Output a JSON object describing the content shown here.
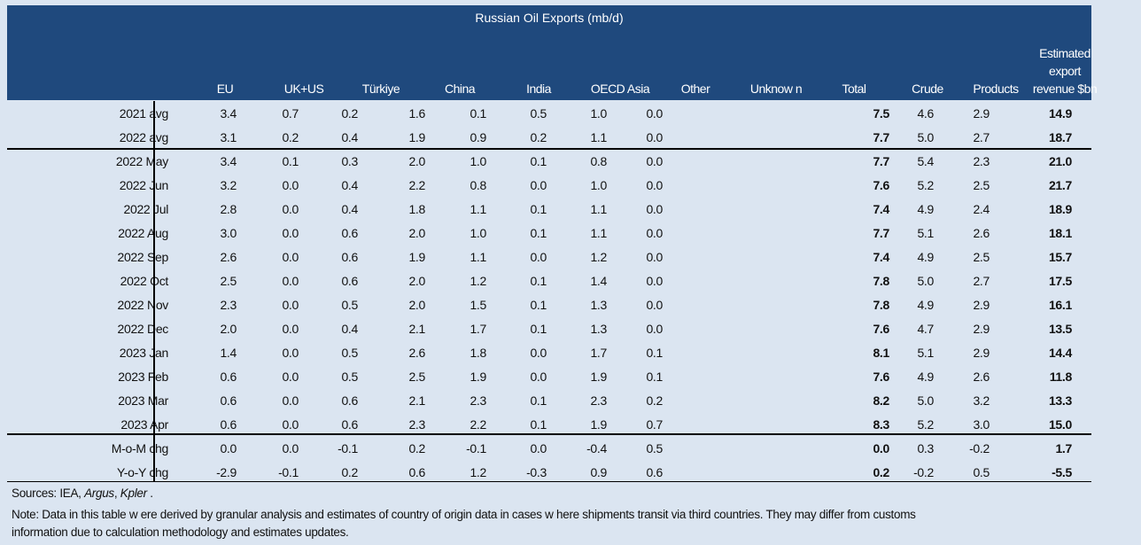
{
  "title": "Russian Oil Exports (mb/d)",
  "columns": [
    "EU",
    "UK+US",
    "Türkiye",
    "China",
    "India",
    "OECD Asia",
    "Other",
    "Unknow n",
    "Total",
    "Crude",
    "Products",
    "Estimated export revenue $bn"
  ],
  "rows": [
    {
      "label": "2021 avg",
      "values": [
        "3.4",
        "0.7",
        "0.2",
        "1.6",
        "0.1",
        "0.5",
        "1.0",
        "0.0",
        "7.5",
        "4.6",
        "2.9",
        "14.9"
      ]
    },
    {
      "label": "2022 avg",
      "values": [
        "3.1",
        "0.2",
        "0.4",
        "1.9",
        "0.9",
        "0.2",
        "1.1",
        "0.0",
        "7.7",
        "5.0",
        "2.7",
        "18.7"
      ]
    },
    {
      "label": "2022 May",
      "values": [
        "3.4",
        "0.1",
        "0.3",
        "2.0",
        "1.0",
        "0.1",
        "0.8",
        "0.0",
        "7.7",
        "5.4",
        "2.3",
        "21.0"
      ]
    },
    {
      "label": "2022 Jun",
      "values": [
        "3.2",
        "0.0",
        "0.4",
        "2.2",
        "0.8",
        "0.0",
        "1.0",
        "0.0",
        "7.6",
        "5.2",
        "2.5",
        "21.7"
      ]
    },
    {
      "label": "2022 Jul",
      "values": [
        "2.8",
        "0.0",
        "0.4",
        "1.8",
        "1.1",
        "0.1",
        "1.1",
        "0.0",
        "7.4",
        "4.9",
        "2.4",
        "18.9"
      ]
    },
    {
      "label": "2022 Aug",
      "values": [
        "3.0",
        "0.0",
        "0.6",
        "2.0",
        "1.0",
        "0.1",
        "1.1",
        "0.0",
        "7.7",
        "5.1",
        "2.6",
        "18.1"
      ]
    },
    {
      "label": "2022 Sep",
      "values": [
        "2.6",
        "0.0",
        "0.6",
        "1.9",
        "1.1",
        "0.0",
        "1.2",
        "0.0",
        "7.4",
        "4.9",
        "2.5",
        "15.7"
      ]
    },
    {
      "label": "2022 Oct",
      "values": [
        "2.5",
        "0.0",
        "0.6",
        "2.0",
        "1.2",
        "0.1",
        "1.4",
        "0.0",
        "7.8",
        "5.0",
        "2.7",
        "17.5"
      ]
    },
    {
      "label": "2022 Nov",
      "values": [
        "2.3",
        "0.0",
        "0.5",
        "2.0",
        "1.5",
        "0.1",
        "1.3",
        "0.0",
        "7.8",
        "4.9",
        "2.9",
        "16.1"
      ]
    },
    {
      "label": "2022 Dec",
      "values": [
        "2.0",
        "0.0",
        "0.4",
        "2.1",
        "1.7",
        "0.1",
        "1.3",
        "0.0",
        "7.6",
        "4.7",
        "2.9",
        "13.5"
      ]
    },
    {
      "label": "2023 Jan",
      "values": [
        "1.4",
        "0.0",
        "0.5",
        "2.6",
        "1.8",
        "0.0",
        "1.7",
        "0.1",
        "8.1",
        "5.1",
        "2.9",
        "14.4"
      ]
    },
    {
      "label": "2023 Feb",
      "values": [
        "0.6",
        "0.0",
        "0.5",
        "2.5",
        "1.9",
        "0.0",
        "1.9",
        "0.1",
        "7.6",
        "4.9",
        "2.6",
        "11.8"
      ]
    },
    {
      "label": "2023 Mar",
      "values": [
        "0.6",
        "0.0",
        "0.6",
        "2.1",
        "2.3",
        "0.1",
        "2.3",
        "0.2",
        "8.2",
        "5.0",
        "3.2",
        "13.3"
      ]
    },
    {
      "label": "2023 Apr",
      "values": [
        "0.6",
        "0.0",
        "0.6",
        "2.3",
        "2.2",
        "0.1",
        "1.9",
        "0.7",
        "8.3",
        "5.2",
        "3.0",
        "15.0"
      ]
    },
    {
      "label": "M-o-M chg",
      "values": [
        "0.0",
        "0.0",
        "-0.1",
        "0.2",
        "-0.1",
        "0.0",
        "-0.4",
        "0.5",
        "0.0",
        "0.3",
        "-0.2",
        "1.7"
      ]
    },
    {
      "label": "Y-o-Y chg",
      "values": [
        "-2.9",
        "-0.1",
        "0.2",
        "0.6",
        "1.2",
        "-0.3",
        "0.9",
        "0.6",
        "0.2",
        "-0.2",
        "0.5",
        "-5.5"
      ]
    }
  ],
  "sources_prefix": "Sources: IEA, ",
  "sources_argus": "Argus",
  "sources_sep": ", ",
  "sources_kpler": "Kpler",
  "sources_end": " .",
  "note_line1": "Note: Data in this table w ere derived by granular analysis and estimates of country of origin data in cases w here shipments transit via third countries. They may differ from customs",
  "note_line2": "information due to calculation methodology and estimates updates.",
  "colors": {
    "header": "#1f497d",
    "background": "#dbe5f1"
  }
}
